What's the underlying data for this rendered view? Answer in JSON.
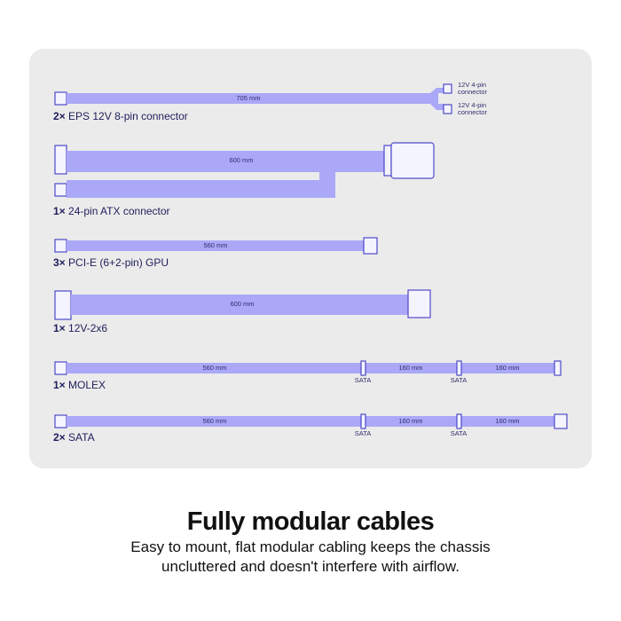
{
  "cables": [
    {
      "count": "2×",
      "name": "EPS 12V 8-pin connector",
      "lengths": [
        "705 mm"
      ],
      "connectors": [
        "12V 4-pin connector",
        "12V 4-pin connector"
      ]
    },
    {
      "count": "1×",
      "name": "24-pin ATX connector",
      "lengths": [
        "600 mm"
      ]
    },
    {
      "count": "3×",
      "name": "PCI-E (6+2-pin) GPU",
      "lengths": [
        "560 mm"
      ]
    },
    {
      "count": "1×",
      "name": "12V-2x6",
      "lengths": [
        "600 mm"
      ]
    },
    {
      "count": "1×",
      "name": "MOLEX",
      "lengths": [
        "560 mm",
        "160 mm",
        "160 mm"
      ],
      "taps": [
        "SATA",
        "SATA"
      ]
    },
    {
      "count": "2×",
      "name": "SATA",
      "lengths": [
        "560 mm",
        "160 mm",
        "160 mm"
      ],
      "taps": [
        "SATA",
        "SATA"
      ]
    }
  ],
  "title": "Fully modular cables",
  "subtitle": [
    "Easy to mount, flat modular cabling keeps the chassis",
    "uncluttered and doesn't interfere with airflow."
  ]
}
